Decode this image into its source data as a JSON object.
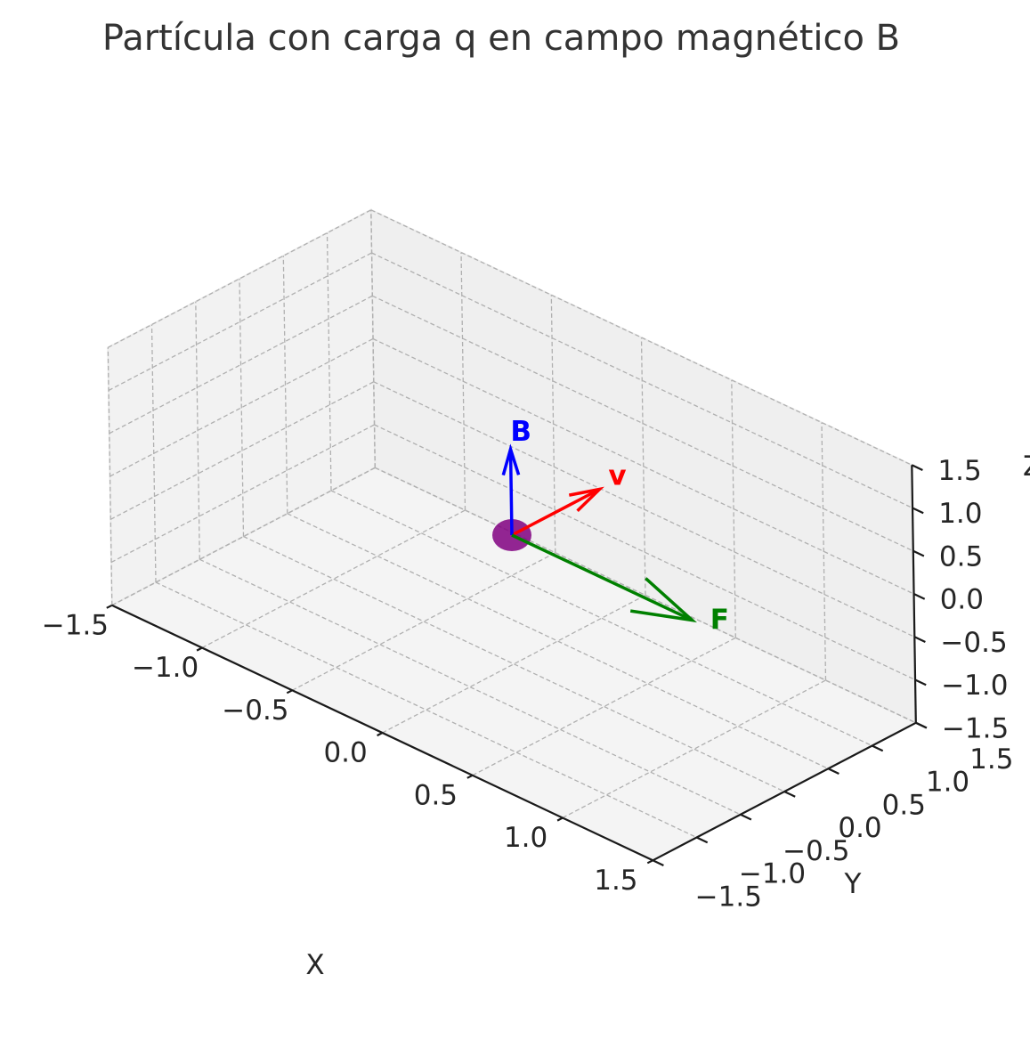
{
  "chart_data": {
    "type": "3d-quiver",
    "title": "Partícula con carga q en campo magnético B",
    "xlabel": "X",
    "ylabel": "Y",
    "zlabel": "Z",
    "xlim": [
      -1.5,
      1.5
    ],
    "ylim": [
      -1.5,
      1.5
    ],
    "zlim": [
      -1.5,
      1.5
    ],
    "ticks": [
      -1.5,
      -1.0,
      -0.5,
      0.0,
      0.5,
      1.0,
      1.5
    ],
    "tick_labels": [
      "−1.5",
      "−1.0",
      "−0.5",
      "0.0",
      "0.5",
      "1.0",
      "1.5"
    ],
    "grid": true,
    "particle": {
      "position": [
        0,
        0,
        0
      ],
      "color": "#800080"
    },
    "vectors": [
      {
        "label": "v",
        "origin": [
          0,
          0,
          0
        ],
        "components": [
          0,
          1,
          0
        ],
        "color": "#ff0000"
      },
      {
        "label": "B",
        "origin": [
          0,
          0,
          0
        ],
        "components": [
          0,
          0,
          1
        ],
        "color": "#0000ff"
      },
      {
        "label": "F",
        "origin": [
          0,
          0,
          0
        ],
        "components": [
          1,
          0,
          0
        ],
        "color": "#008000"
      }
    ]
  }
}
